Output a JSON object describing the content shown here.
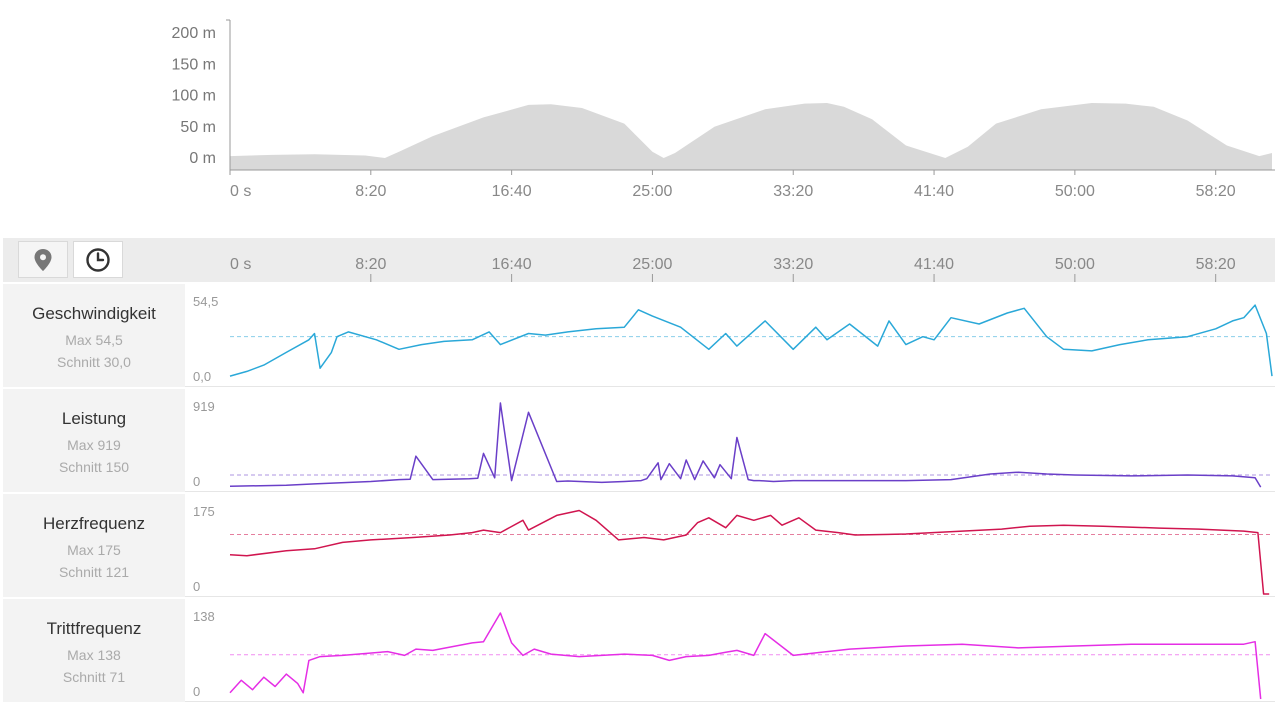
{
  "colors": {
    "speed": "#2aa8d8",
    "power": "#6a3fc8",
    "heart": "#d0154f",
    "cadence": "#e52ee5",
    "elevation_fill": "#d9d9d9",
    "axis": "#888888"
  },
  "toolbar": {
    "map_icon": "map-pin-icon",
    "time_icon": "clock-icon"
  },
  "x_ticks": [
    "0 s",
    "8:20",
    "16:40",
    "25:00",
    "33:20",
    "41:40",
    "50:00",
    "58:20"
  ],
  "chart_data": [
    {
      "type": "area",
      "title": "",
      "xlabel": "",
      "ylabel": "",
      "ylim": [
        0,
        200
      ],
      "y_ticks": [
        "200 m",
        "150 m",
        "100 m",
        "50 m",
        "0 m"
      ],
      "x_unit": "seconds",
      "x": [
        0,
        150,
        300,
        480,
        550,
        600,
        720,
        900,
        1060,
        1140,
        1250,
        1400,
        1500,
        1540,
        1580,
        1720,
        1900,
        2040,
        2120,
        2180,
        2280,
        2400,
        2540,
        2620,
        2720,
        2880,
        3060,
        3180,
        3280,
        3400,
        3540,
        3655,
        3700
      ],
      "values": [
        3,
        5,
        6,
        4,
        0,
        10,
        35,
        65,
        85,
        86,
        80,
        55,
        10,
        0,
        8,
        50,
        78,
        87,
        88,
        82,
        62,
        20,
        0,
        18,
        55,
        78,
        88,
        87,
        82,
        60,
        20,
        3,
        8
      ]
    },
    {
      "type": "line",
      "name": "Geschwindigkeit",
      "max_label": "Max 54,5",
      "avg_label": "Schnitt 30,0",
      "ylim_labels": [
        "54,5",
        "0,0"
      ],
      "ylim": [
        0,
        54.5
      ],
      "average": 30.0,
      "x_unit": "seconds",
      "x": [
        0,
        60,
        120,
        200,
        280,
        300,
        320,
        360,
        380,
        420,
        520,
        600,
        680,
        760,
        860,
        920,
        960,
        1060,
        1120,
        1200,
        1300,
        1400,
        1450,
        1500,
        1600,
        1700,
        1760,
        1800,
        1900,
        2000,
        2080,
        2120,
        2200,
        2300,
        2340,
        2400,
        2460,
        2500,
        2560,
        2660,
        2760,
        2820,
        2900,
        2960,
        3060,
        3160,
        3260,
        3400,
        3500,
        3560,
        3600,
        3640,
        3680,
        3700
      ],
      "values": [
        5,
        8,
        12,
        20,
        28,
        32,
        10,
        20,
        30,
        33,
        28,
        22,
        25,
        27,
        28,
        33,
        25,
        32,
        31,
        33,
        35,
        36,
        47,
        43,
        36,
        22,
        32,
        24,
        40,
        22,
        36,
        28,
        38,
        24,
        40,
        25,
        30,
        28,
        42,
        38,
        45,
        48,
        30,
        22,
        21,
        25,
        28,
        30,
        35,
        40,
        42,
        50,
        32,
        5
      ]
    },
    {
      "type": "line",
      "name": "Leistung",
      "max_label": "Max 919",
      "avg_label": "Schnitt 150",
      "ylim_labels": [
        "919",
        "0"
      ],
      "ylim": [
        0,
        919
      ],
      "average": 150,
      "x_unit": "seconds",
      "x": [
        0,
        200,
        300,
        500,
        600,
        640,
        660,
        720,
        850,
        880,
        900,
        940,
        960,
        1000,
        1060,
        1160,
        1200,
        1320,
        1400,
        1460,
        1480,
        1520,
        1530,
        1560,
        1600,
        1620,
        1650,
        1680,
        1720,
        1740,
        1780,
        1800,
        1840,
        1860,
        1880,
        1930,
        2000,
        2200,
        2400,
        2560,
        2700,
        2800,
        2900,
        3000,
        3200,
        3400,
        3560,
        3640,
        3660
      ],
      "values": [
        30,
        40,
        55,
        80,
        100,
        105,
        350,
        100,
        110,
        115,
        380,
        120,
        919,
        90,
        820,
        80,
        85,
        70,
        80,
        90,
        110,
        280,
        100,
        270,
        110,
        310,
        100,
        300,
        120,
        260,
        110,
        550,
        100,
        90,
        90,
        80,
        90,
        90,
        90,
        100,
        160,
        180,
        160,
        150,
        140,
        150,
        140,
        120,
        20
      ]
    },
    {
      "type": "line",
      "name": "Herzfrequenz",
      "max_label": "Max 175",
      "avg_label": "Schnitt 121",
      "ylim_labels": [
        "175",
        "0"
      ],
      "ylim": [
        0,
        175
      ],
      "average": 121,
      "x_unit": "seconds",
      "x": [
        0,
        60,
        200,
        300,
        400,
        500,
        650,
        780,
        860,
        900,
        960,
        1040,
        1060,
        1160,
        1240,
        1300,
        1380,
        1470,
        1540,
        1620,
        1660,
        1700,
        1760,
        1800,
        1860,
        1920,
        1960,
        2020,
        2080,
        2160,
        2220,
        2400,
        2600,
        2740,
        2840,
        2960,
        3100,
        3300,
        3440,
        3600,
        3650,
        3670,
        3690
      ],
      "values": [
        80,
        78,
        88,
        92,
        105,
        110,
        115,
        120,
        125,
        130,
        125,
        150,
        130,
        160,
        170,
        150,
        110,
        115,
        110,
        120,
        145,
        155,
        135,
        160,
        150,
        160,
        140,
        155,
        130,
        125,
        120,
        122,
        128,
        132,
        138,
        140,
        138,
        134,
        132,
        128,
        125,
        0,
        0
      ]
    },
    {
      "type": "line",
      "name": "Trittfrequenz",
      "max_label": "Max 138",
      "avg_label": "Schnitt 71",
      "ylim_labels": [
        "138",
        "0"
      ],
      "ylim": [
        0,
        138
      ],
      "average": 71,
      "x_unit": "seconds",
      "x": [
        0,
        40,
        80,
        120,
        160,
        200,
        240,
        260,
        280,
        320,
        400,
        560,
        620,
        660,
        720,
        860,
        900,
        960,
        1000,
        1040,
        1080,
        1140,
        1240,
        1400,
        1500,
        1560,
        1620,
        1700,
        1760,
        1800,
        1860,
        1900,
        2000,
        2200,
        2400,
        2600,
        2800,
        3000,
        3200,
        3400,
        3600,
        3640,
        3660
      ],
      "values": [
        10,
        30,
        15,
        35,
        20,
        40,
        25,
        10,
        62,
        68,
        70,
        76,
        70,
        80,
        78,
        90,
        92,
        138,
        90,
        70,
        80,
        72,
        68,
        72,
        70,
        62,
        68,
        70,
        75,
        78,
        70,
        105,
        70,
        80,
        85,
        88,
        82,
        85,
        88,
        88,
        88,
        92,
        0
      ]
    }
  ]
}
